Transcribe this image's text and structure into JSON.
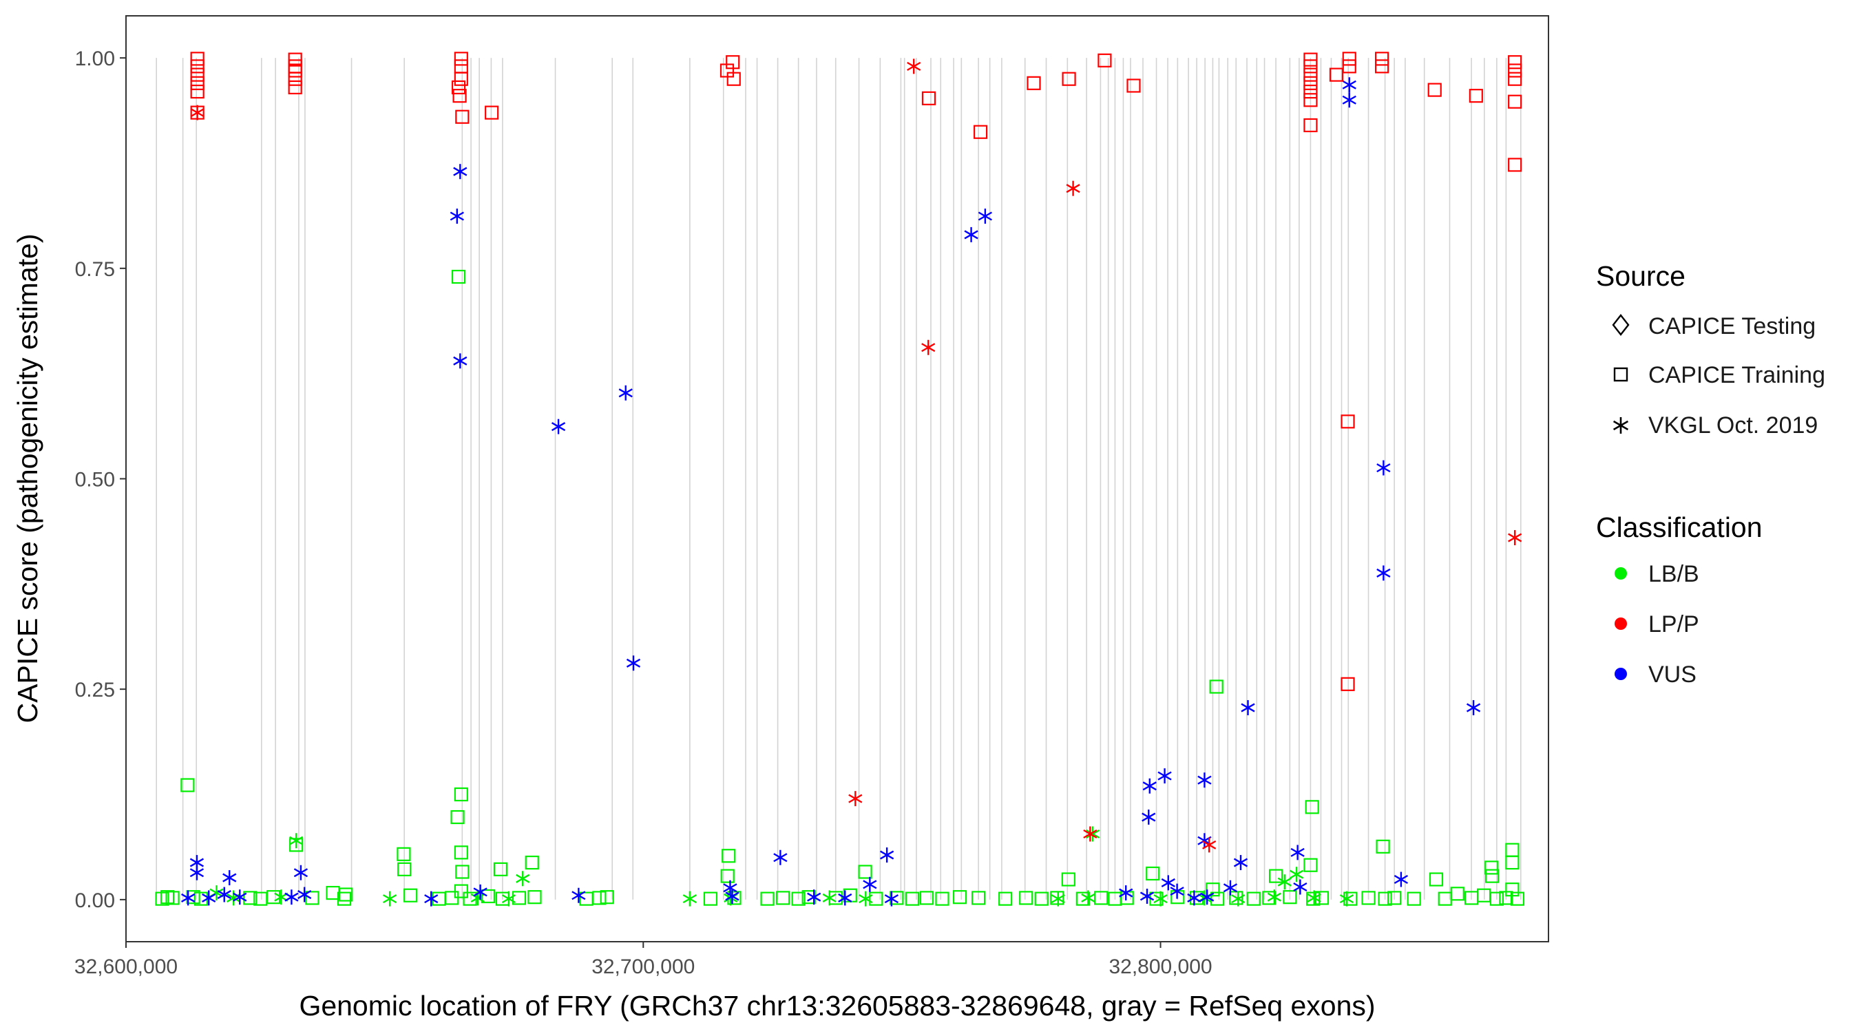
{
  "chart_data": {
    "type": "scatter",
    "title": "",
    "xlabel": "Genomic location of FRY (GRCh37 chr13:32605883-32869648, gray = RefSeq exons)",
    "ylabel": "CAPICE score (pathogenicity estimate)",
    "xlim": [
      32600000,
      32875000
    ],
    "ylim": [
      -0.05,
      1.05
    ],
    "x_ticks": [
      32600000,
      32700000,
      32800000
    ],
    "x_tick_labels": [
      "32,600,000",
      "32,700,000",
      "32,800,000"
    ],
    "y_ticks": [
      0,
      0.25,
      0.5,
      0.75,
      1.0
    ],
    "y_tick_labels": [
      "0.00",
      "0.25",
      "0.50",
      "0.75",
      "1.00"
    ],
    "grid": false,
    "exon_lines_color": "#d3d3d3",
    "exons": [
      32605883,
      32611000,
      32613600,
      32626200,
      32628900,
      32633400,
      32634600,
      32643600,
      32653800,
      32665000,
      32666700,
      32668300,
      32670600,
      32672800,
      32683000,
      32694000,
      32698000,
      32709000,
      32715500,
      32719800,
      32722000,
      32726000,
      32730000,
      32733500,
      32737200,
      32741700,
      32745800,
      32749800,
      32750500,
      32752800,
      32755600,
      32757500,
      32760000,
      32761500,
      32764800,
      32767000,
      32769300,
      32773800,
      32777900,
      32782000,
      32785700,
      32788400,
      32789900,
      32791200,
      32792800,
      32794200,
      32796600,
      32799200,
      32801400,
      32803300,
      32805400,
      32807000,
      32808600,
      32810100,
      32811300,
      32813000,
      32814600,
      32816700,
      32818600,
      32820100,
      32822300,
      32825000,
      32826800,
      32829000,
      32831000,
      32833000,
      32835000,
      32836300,
      32840200,
      32843400,
      32845200,
      32847300,
      32851000,
      32855900,
      32860100,
      32862600,
      32865000,
      32866800,
      32869648
    ],
    "legend": {
      "position": "right",
      "source_title": "Source",
      "source_entries": [
        {
          "label": "CAPICE Testing",
          "shape": "diamond"
        },
        {
          "label": "CAPICE Training",
          "shape": "square"
        },
        {
          "label": "VKGL Oct. 2019",
          "shape": "asterisk"
        }
      ],
      "class_title": "Classification",
      "class_entries": [
        {
          "label": "LB/B",
          "color": "#00ee00"
        },
        {
          "label": "LP/P",
          "color": "#ff0000"
        },
        {
          "label": "VUS",
          "color": "#0000ff"
        }
      ]
    },
    "series": [
      {
        "name": "LP/P - CAPICE Training",
        "classification": "LP/P",
        "source": "CAPICE Training",
        "points": [
          [
            32613800,
            0.999
          ],
          [
            32613800,
            0.99
          ],
          [
            32613800,
            0.98
          ],
          [
            32613800,
            0.97
          ],
          [
            32613800,
            0.96
          ],
          [
            32613800,
            0.935
          ],
          [
            32632700,
            0.998
          ],
          [
            32632700,
            0.99
          ],
          [
            32632700,
            0.985
          ],
          [
            32632700,
            0.975
          ],
          [
            32632700,
            0.965
          ],
          [
            32664800,
            0.999
          ],
          [
            32664800,
            0.99
          ],
          [
            32664800,
            0.975
          ],
          [
            32664300,
            0.965
          ],
          [
            32664500,
            0.955
          ],
          [
            32665000,
            0.93
          ],
          [
            32670700,
            0.935
          ],
          [
            32717300,
            0.995
          ],
          [
            32716200,
            0.985
          ],
          [
            32717500,
            0.975
          ],
          [
            32755200,
            0.952
          ],
          [
            32765200,
            0.912
          ],
          [
            32775500,
            0.97
          ],
          [
            32782300,
            0.975
          ],
          [
            32789200,
            0.997
          ],
          [
            32794800,
            0.967
          ],
          [
            32829000,
            0.998
          ],
          [
            32829000,
            0.99
          ],
          [
            32829000,
            0.98
          ],
          [
            32829000,
            0.97
          ],
          [
            32829000,
            0.96
          ],
          [
            32829000,
            0.95
          ],
          [
            32829000,
            0.92
          ],
          [
            32834000,
            0.98
          ],
          [
            32836500,
            0.999
          ],
          [
            32836500,
            0.99
          ],
          [
            32836200,
            0.568
          ],
          [
            32836200,
            0.256
          ],
          [
            32842800,
            0.999
          ],
          [
            32842800,
            0.99
          ],
          [
            32853000,
            0.962
          ],
          [
            32861000,
            0.955
          ],
          [
            32868500,
            0.995
          ],
          [
            32868500,
            0.985
          ],
          [
            32868500,
            0.975
          ],
          [
            32868500,
            0.948
          ],
          [
            32868500,
            0.873
          ]
        ]
      },
      {
        "name": "LP/P - VKGL Oct. 2019",
        "classification": "LP/P",
        "source": "VKGL Oct. 2019",
        "points": [
          [
            32613800,
            0.935
          ],
          [
            32752300,
            0.99
          ],
          [
            32755100,
            0.656
          ],
          [
            32783100,
            0.845
          ],
          [
            32741000,
            0.12
          ],
          [
            32786400,
            0.078
          ],
          [
            32809400,
            0.065
          ],
          [
            32868500,
            0.43
          ]
        ]
      },
      {
        "name": "VUS - VKGL Oct. 2019",
        "classification": "VUS",
        "source": "VKGL Oct. 2019",
        "points": [
          [
            32664600,
            0.865
          ],
          [
            32664000,
            0.812
          ],
          [
            32664600,
            0.64
          ],
          [
            32683600,
            0.562
          ],
          [
            32696600,
            0.602
          ],
          [
            32698100,
            0.281
          ],
          [
            32763400,
            0.79
          ],
          [
            32766100,
            0.812
          ],
          [
            32836500,
            0.968
          ],
          [
            32836500,
            0.95
          ],
          [
            32843100,
            0.513
          ],
          [
            32843100,
            0.388
          ],
          [
            32860500,
            0.228
          ],
          [
            32797700,
            0.098
          ],
          [
            32797900,
            0.135
          ],
          [
            32800800,
            0.147
          ],
          [
            32808500,
            0.142
          ],
          [
            32808500,
            0.07
          ],
          [
            32816900,
            0.228
          ],
          [
            32815500,
            0.044
          ],
          [
            32826500,
            0.056
          ],
          [
            32613700,
            0.044
          ],
          [
            32613700,
            0.032
          ],
          [
            32620000,
            0.026
          ],
          [
            32633800,
            0.032
          ],
          [
            32726500,
            0.05
          ],
          [
            32747100,
            0.053
          ],
          [
            32743800,
            0.018
          ],
          [
            32797400,
            0.004
          ],
          [
            32803200,
            0.01
          ],
          [
            32809000,
            0.003
          ],
          [
            32813500,
            0.014
          ],
          [
            32827000,
            0.015
          ],
          [
            32846500,
            0.024
          ],
          [
            32612000,
            0.002
          ],
          [
            32616000,
            0.002
          ],
          [
            32619000,
            0.006
          ],
          [
            32622000,
            0.003
          ],
          [
            32632000,
            0.003
          ],
          [
            32634500,
            0.006
          ],
          [
            32659000,
            0.001
          ],
          [
            32668500,
            0.009
          ],
          [
            32687500,
            0.005
          ],
          [
            32716800,
            0.014
          ],
          [
            32717200,
            0.004
          ],
          [
            32733000,
            0.003
          ],
          [
            32739000,
            0.002
          ],
          [
            32748000,
            0.001
          ],
          [
            32793300,
            0.008
          ],
          [
            32801500,
            0.02
          ],
          [
            32806500,
            0.002
          ]
        ]
      },
      {
        "name": "LB/B - CAPICE Training",
        "classification": "LB/B",
        "source": "CAPICE Training",
        "points": [
          [
            32611900,
            0.136
          ],
          [
            32664300,
            0.74
          ],
          [
            32664800,
            0.125
          ],
          [
            32664100,
            0.098
          ],
          [
            32664800,
            0.056
          ],
          [
            32665000,
            0.033
          ],
          [
            32810800,
            0.253
          ],
          [
            32829300,
            0.11
          ],
          [
            32843000,
            0.063
          ],
          [
            32632900,
            0.065
          ],
          [
            32653700,
            0.054
          ],
          [
            32653800,
            0.036
          ],
          [
            32672400,
            0.036
          ],
          [
            32678500,
            0.044
          ],
          [
            32716500,
            0.052
          ],
          [
            32716300,
            0.028
          ],
          [
            32742900,
            0.033
          ],
          [
            32782200,
            0.024
          ],
          [
            32798500,
            0.031
          ],
          [
            32822300,
            0.028
          ],
          [
            32829000,
            0.041
          ],
          [
            32853300,
            0.024
          ],
          [
            32864000,
            0.038
          ],
          [
            32864100,
            0.028
          ],
          [
            32868000,
            0.059
          ],
          [
            32868000,
            0.044
          ],
          [
            32868000,
            0.012
          ],
          [
            32640000,
            0.008
          ],
          [
            32642500,
            0.006
          ],
          [
            32664800,
            0.01
          ],
          [
            32810100,
            0.012
          ],
          [
            32857400,
            0.007
          ],
          [
            32862500,
            0.005
          ],
          [
            32607000,
            0.001
          ],
          [
            32608000,
            0.003
          ],
          [
            32609000,
            0.002
          ],
          [
            32613000,
            0.003
          ],
          [
            32614500,
            0.001
          ],
          [
            32624000,
            0.002
          ],
          [
            32626000,
            0.001
          ],
          [
            32628500,
            0.003
          ],
          [
            32636000,
            0.002
          ],
          [
            32642200,
            0.001
          ],
          [
            32655000,
            0.005
          ],
          [
            32660500,
            0.001
          ],
          [
            32663000,
            0.002
          ],
          [
            32666500,
            0.001
          ],
          [
            32670000,
            0.004
          ],
          [
            32672800,
            0.001
          ],
          [
            32676000,
            0.002
          ],
          [
            32679000,
            0.003
          ],
          [
            32689000,
            0.001
          ],
          [
            32691500,
            0.002
          ],
          [
            32693000,
            0.003
          ],
          [
            32713000,
            0.001
          ],
          [
            32717600,
            0.002
          ],
          [
            32724000,
            0.001
          ],
          [
            32727000,
            0.002
          ],
          [
            32730000,
            0.001
          ],
          [
            32732000,
            0.003
          ],
          [
            32737200,
            0.002
          ],
          [
            32740000,
            0.005
          ],
          [
            32745000,
            0.001
          ],
          [
            32749000,
            0.002
          ],
          [
            32752000,
            0.001
          ],
          [
            32754800,
            0.002
          ],
          [
            32757800,
            0.001
          ],
          [
            32761200,
            0.003
          ],
          [
            32764800,
            0.002
          ],
          [
            32770000,
            0.001
          ],
          [
            32774000,
            0.002
          ],
          [
            32777000,
            0.001
          ],
          [
            32780000,
            0.002
          ],
          [
            32785000,
            0.001
          ],
          [
            32788500,
            0.002
          ],
          [
            32791200,
            0.001
          ],
          [
            32793500,
            0.002
          ],
          [
            32799200,
            0.001
          ],
          [
            32803300,
            0.003
          ],
          [
            32807000,
            0.002
          ],
          [
            32811000,
            0.001
          ],
          [
            32814600,
            0.002
          ],
          [
            32818000,
            0.001
          ],
          [
            32821000,
            0.002
          ],
          [
            32825000,
            0.003
          ],
          [
            32829500,
            0.001
          ],
          [
            32831200,
            0.002
          ],
          [
            32836700,
            0.001
          ],
          [
            32840200,
            0.002
          ],
          [
            32843400,
            0.001
          ],
          [
            32845200,
            0.002
          ],
          [
            32849000,
            0.001
          ],
          [
            32855000,
            0.001
          ],
          [
            32860100,
            0.002
          ],
          [
            32865000,
            0.001
          ],
          [
            32866800,
            0.002
          ],
          [
            32869000,
            0.001
          ]
        ]
      },
      {
        "name": "LB/B - VKGL Oct. 2019",
        "classification": "LB/B",
        "source": "VKGL Oct. 2019",
        "points": [
          [
            32632900,
            0.07
          ],
          [
            32786900,
            0.078
          ],
          [
            32676700,
            0.025
          ],
          [
            32651000,
            0.001
          ],
          [
            32709000,
            0.001
          ],
          [
            32824000,
            0.021
          ],
          [
            32826300,
            0.03
          ],
          [
            32617500,
            0.008
          ],
          [
            32620800,
            0.002
          ],
          [
            32630000,
            0.003
          ],
          [
            32668000,
            0.002
          ],
          [
            32674000,
            0.001
          ],
          [
            32716900,
            0.002
          ],
          [
            32736000,
            0.002
          ],
          [
            32743000,
            0.001
          ],
          [
            32780200,
            0.001
          ],
          [
            32786000,
            0.002
          ],
          [
            32800000,
            0.001
          ],
          [
            32808500,
            0.002
          ],
          [
            32815000,
            0.001
          ],
          [
            32822000,
            0.003
          ],
          [
            32829700,
            0.002
          ],
          [
            32836000,
            0.001
          ]
        ]
      }
    ]
  }
}
